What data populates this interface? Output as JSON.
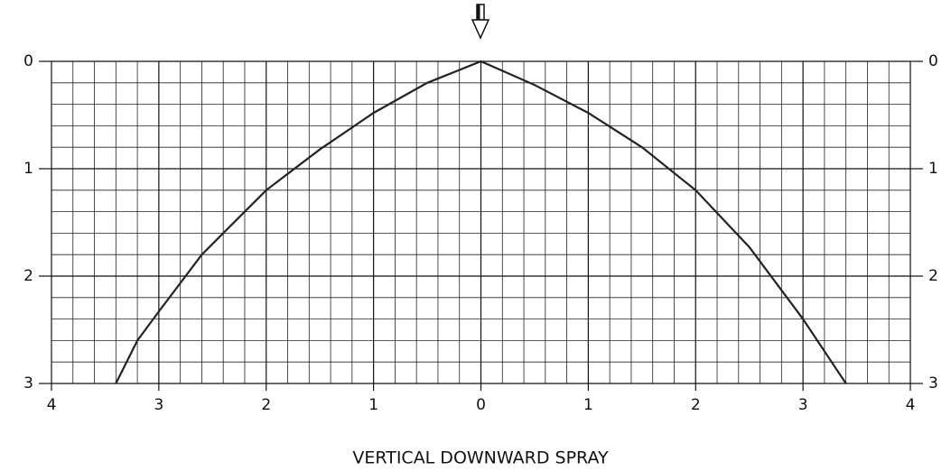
{
  "chart_data": {
    "type": "line",
    "title": "VERTICAL DOWNWARD SPRAY",
    "x": [
      -3.4,
      -3.2,
      -3.0,
      -2.6,
      -2.0,
      -1.5,
      -1.0,
      -0.5,
      0,
      0.5,
      1.0,
      1.5,
      2.0,
      2.5,
      3.0,
      3.2,
      3.4
    ],
    "series": [
      {
        "name": null,
        "color": "#222222",
        "values": [
          3.0,
          2.6,
          2.33,
          1.8,
          1.2,
          0.82,
          0.48,
          0.2,
          0,
          0.22,
          0.48,
          0.8,
          1.2,
          1.73,
          2.4,
          2.7,
          3.0
        ]
      }
    ],
    "xlim": [
      -4,
      4
    ],
    "xticks": [
      {
        "value": -4,
        "label": "4"
      },
      {
        "value": -3,
        "label": "3"
      },
      {
        "value": -2,
        "label": "2"
      },
      {
        "value": -1,
        "label": "1"
      },
      0,
      1,
      2,
      3,
      4
    ],
    "ylim": [
      0,
      3
    ],
    "yticks": [
      0,
      1,
      2,
      3
    ],
    "y_inverted": true,
    "grid": true,
    "minor_per_tick": 5
  }
}
